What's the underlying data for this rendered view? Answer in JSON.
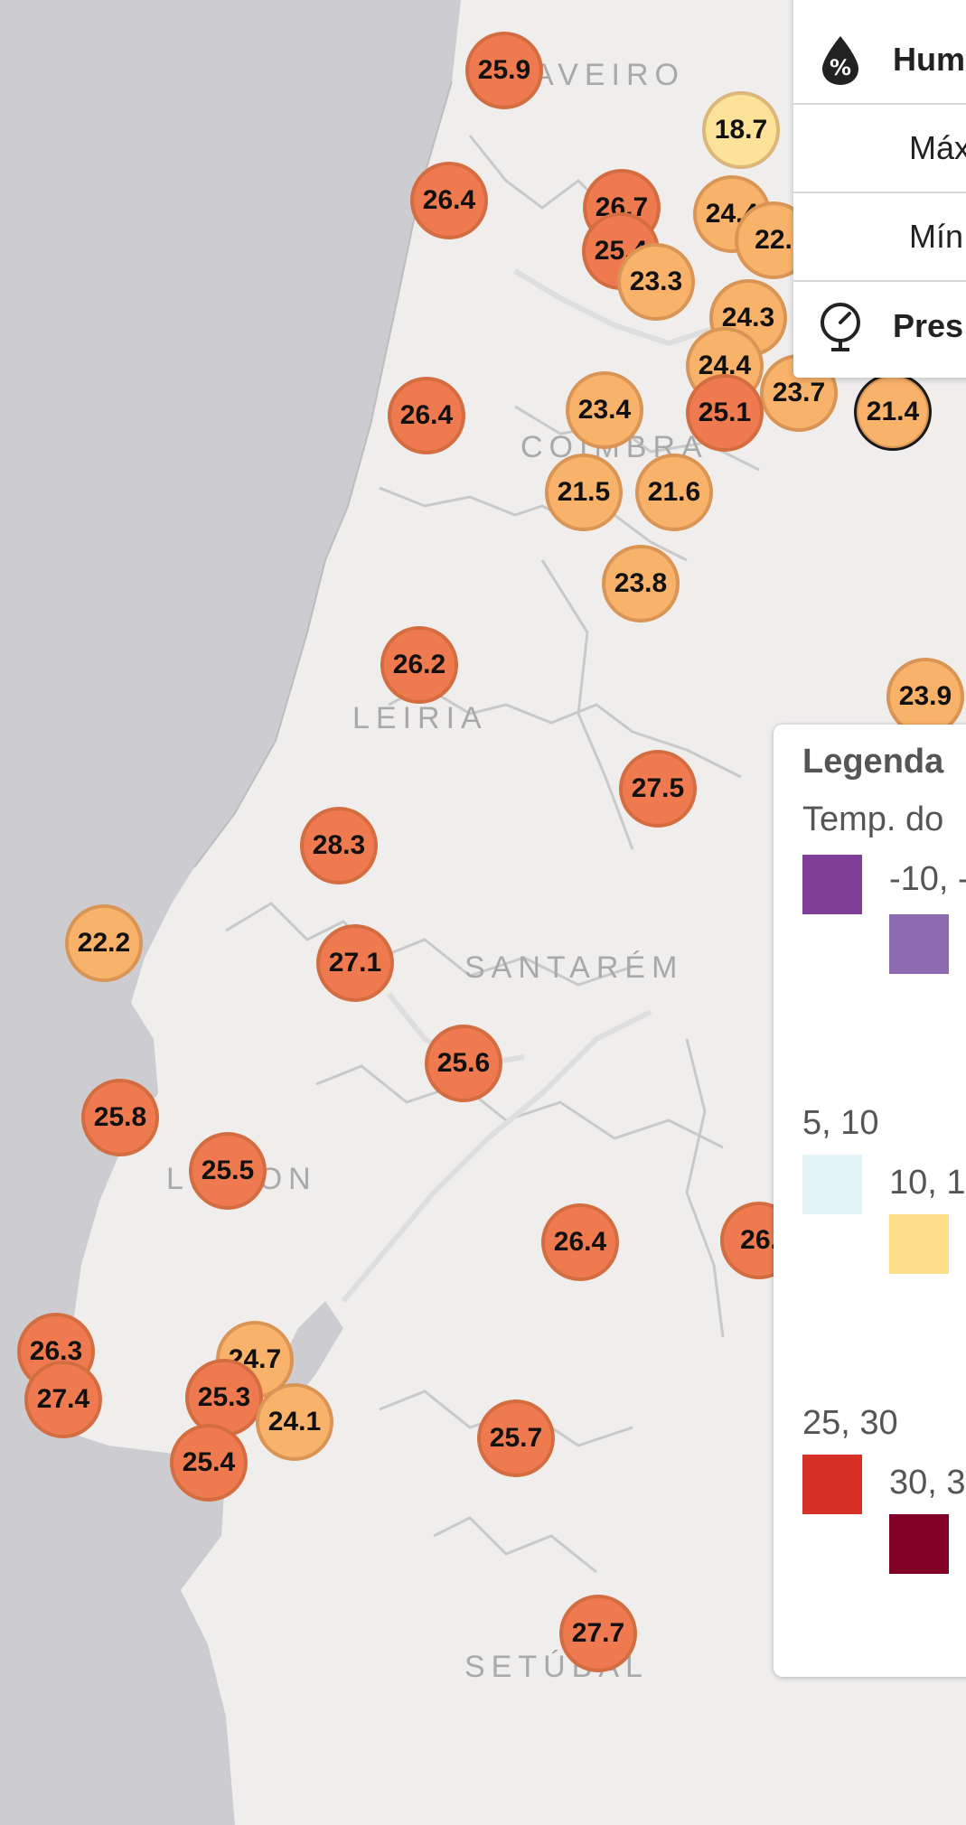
{
  "regions": [
    "AVEIRO",
    "COIMBRA",
    "LEIRIA",
    "SANTARÉM",
    "LISBON",
    "SETÚBAL"
  ],
  "stations": [
    {
      "value": "25.9",
      "level": "hot"
    },
    {
      "value": "18.7",
      "level": "mild"
    },
    {
      "value": "26.4",
      "level": "hot"
    },
    {
      "value": "26.7",
      "level": "hot"
    },
    {
      "value": "24.4",
      "level": "warm"
    },
    {
      "value": "22.",
      "level": "warm"
    },
    {
      "value": "25.4",
      "level": "hot"
    },
    {
      "value": "23.3",
      "level": "warm"
    },
    {
      "value": "24.3",
      "level": "warm"
    },
    {
      "value": "24.4",
      "level": "warm"
    },
    {
      "value": "23.7",
      "level": "warm"
    },
    {
      "value": "26.4",
      "level": "hot"
    },
    {
      "value": "23.4",
      "level": "warm"
    },
    {
      "value": "25.1",
      "level": "hot"
    },
    {
      "value": "21.4",
      "level": "warm",
      "selected": true
    },
    {
      "value": "21.5",
      "level": "warm"
    },
    {
      "value": "21.6",
      "level": "warm"
    },
    {
      "value": "23.8",
      "level": "warm"
    },
    {
      "value": "26.2",
      "level": "hot"
    },
    {
      "value": "23.9",
      "level": "warm"
    },
    {
      "value": "27.5",
      "level": "hot"
    },
    {
      "value": "28.3",
      "level": "hot"
    },
    {
      "value": "22.2",
      "level": "warm"
    },
    {
      "value": "27.1",
      "level": "hot"
    },
    {
      "value": "25.6",
      "level": "hot"
    },
    {
      "value": "25.8",
      "level": "hot"
    },
    {
      "value": "25.5",
      "level": "hot"
    },
    {
      "value": "26.4",
      "level": "hot"
    },
    {
      "value": "26.",
      "level": "hot"
    },
    {
      "value": "26.3",
      "level": "hot"
    },
    {
      "value": "24.7",
      "level": "warm"
    },
    {
      "value": "27.4",
      "level": "hot"
    },
    {
      "value": "25.3",
      "level": "hot"
    },
    {
      "value": "24.1",
      "level": "warm"
    },
    {
      "value": "25.4",
      "level": "hot"
    },
    {
      "value": "25.7",
      "level": "hot"
    },
    {
      "value": "27.7",
      "level": "hot"
    }
  ],
  "info_card": {
    "humidity_label": "Hum",
    "max_label": "Máx",
    "min_label": "Mín",
    "pressure_label": "Pres"
  },
  "legend": {
    "title": "Legenda",
    "subtitle": "Temp. do",
    "entries": [
      {
        "label": "-10, -",
        "color": "#7f3f98"
      },
      {
        "label": "",
        "color": "#8e6bb0"
      },
      {
        "label": "5, 10",
        "color": ""
      },
      {
        "label": "10, 1",
        "color": "#e3f3f8"
      },
      {
        "label": "",
        "color": "#ffe08a"
      },
      {
        "label": "25, 30",
        "color": "#d73027"
      },
      {
        "label": "30, 3",
        "color": "#800026"
      }
    ]
  },
  "colors": {
    "hot": "#f07a4f",
    "warm": "#f9b26a",
    "mild": "#fde29a",
    "sea": "#cdcdd1",
    "land": "#efeeed"
  }
}
